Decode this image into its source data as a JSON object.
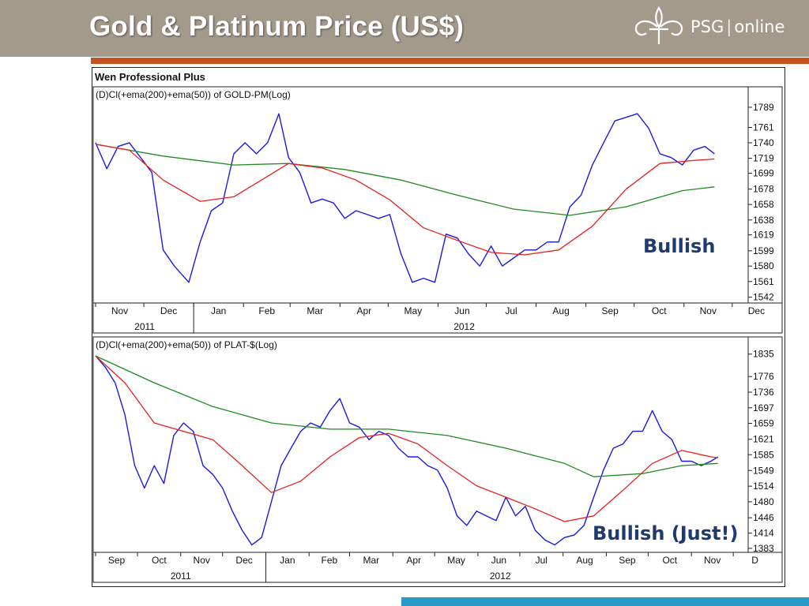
{
  "title": "Gold & Platinum Price (US$)",
  "logo": {
    "brand": "PSG",
    "suffix": "online",
    "icon": "fleur-de-lis-icon"
  },
  "colors": {
    "header": "#a49a8c",
    "accent": "#c4521e",
    "bottom_bar": "#2a9bc8",
    "price": "#1a1ae6",
    "ema50": "#e62020",
    "ema200": "#1f8a1f",
    "annotation": "#1f3a6e"
  },
  "panel_title": "Wen Professional Plus",
  "chart_data": [
    {
      "type": "line",
      "title": "(D)Cl(+ema(200)+ema(50)) of GOLD-PM(Log)",
      "scale": "log",
      "ylim": [
        1535,
        1800
      ],
      "y_ticks": [
        1789,
        1761,
        1740,
        1719,
        1699,
        1678,
        1658,
        1638,
        1619,
        1599,
        1580,
        1561,
        1542
      ],
      "x_range": [
        "2011-11-01",
        "2012-12-06"
      ],
      "months": [
        "Nov",
        "Dec",
        "Jan",
        "Feb",
        "Mar",
        "Apr",
        "May",
        "Jun",
        "Jul",
        "Aug",
        "Sep",
        "Oct",
        "Nov",
        "Dec"
      ],
      "years": [
        "2011",
        "2012"
      ],
      "annotation": "Bullish",
      "series": [
        {
          "name": "GOLD-PM",
          "color": "#1a1ae6",
          "x": [
            "2011-11-01",
            "2011-11-08",
            "2011-11-15",
            "2011-11-22",
            "2011-11-29",
            "2011-12-06",
            "2011-12-13",
            "2011-12-20",
            "2011-12-29",
            "2012-01-05",
            "2012-01-12",
            "2012-01-19",
            "2012-01-26",
            "2012-02-02",
            "2012-02-09",
            "2012-02-16",
            "2012-02-23",
            "2012-02-29",
            "2012-03-07",
            "2012-03-14",
            "2012-03-21",
            "2012-03-28",
            "2012-04-04",
            "2012-04-11",
            "2012-04-18",
            "2012-04-25",
            "2012-05-02",
            "2012-05-09",
            "2012-05-16",
            "2012-05-23",
            "2012-05-30",
            "2012-06-06",
            "2012-06-13",
            "2012-06-20",
            "2012-06-27",
            "2012-07-04",
            "2012-07-11",
            "2012-07-18",
            "2012-07-25",
            "2012-08-01",
            "2012-08-08",
            "2012-08-15",
            "2012-08-22",
            "2012-08-29",
            "2012-09-05",
            "2012-09-12",
            "2012-09-19",
            "2012-09-26",
            "2012-10-03",
            "2012-10-10",
            "2012-10-17",
            "2012-10-24",
            "2012-10-31",
            "2012-11-07",
            "2012-11-14",
            "2012-11-20"
          ],
          "values": [
            1740,
            1705,
            1735,
            1740,
            1720,
            1700,
            1600,
            1580,
            1560,
            1610,
            1650,
            1660,
            1725,
            1740,
            1725,
            1740,
            1780,
            1720,
            1700,
            1660,
            1665,
            1660,
            1640,
            1650,
            1645,
            1640,
            1645,
            1595,
            1560,
            1565,
            1560,
            1620,
            1615,
            1595,
            1580,
            1605,
            1580,
            1590,
            1600,
            1600,
            1610,
            1610,
            1655,
            1670,
            1710,
            1740,
            1770,
            1775,
            1780,
            1760,
            1725,
            1720,
            1710,
            1730,
            1735,
            1725
          ]
        },
        {
          "name": "ema(50)",
          "color": "#e62020",
          "x": [
            "2011-11-01",
            "2011-11-22",
            "2011-12-13",
            "2012-01-05",
            "2012-01-26",
            "2012-02-16",
            "2012-02-29",
            "2012-03-21",
            "2012-04-11",
            "2012-05-02",
            "2012-05-23",
            "2012-06-13",
            "2012-07-04",
            "2012-07-25",
            "2012-08-15",
            "2012-09-05",
            "2012-09-26",
            "2012-10-17",
            "2012-11-07",
            "2012-11-20"
          ],
          "values": [
            1738,
            1730,
            1690,
            1662,
            1668,
            1695,
            1712,
            1706,
            1690,
            1664,
            1628,
            1612,
            1597,
            1594,
            1600,
            1630,
            1678,
            1712,
            1716,
            1718
          ]
        },
        {
          "name": "ema(200)",
          "color": "#1f8a1f",
          "x": [
            "2011-11-01",
            "2011-12-13",
            "2012-01-26",
            "2012-02-29",
            "2012-04-04",
            "2012-05-09",
            "2012-06-13",
            "2012-07-18",
            "2012-08-22",
            "2012-09-26",
            "2012-10-31",
            "2012-11-20"
          ],
          "values": [
            1738,
            1722,
            1710,
            1712,
            1704,
            1690,
            1670,
            1652,
            1644,
            1655,
            1676,
            1681
          ]
        }
      ]
    },
    {
      "type": "line",
      "title": "(D)Cl(+ema(200)+ema(50)) of PLAT-$(Log)",
      "scale": "log",
      "ylim": [
        1375,
        1845
      ],
      "y_ticks": [
        1835,
        1776,
        1736,
        1697,
        1659,
        1621,
        1585,
        1549,
        1514,
        1480,
        1446,
        1414,
        1383
      ],
      "x_range": [
        "2011-09-01",
        "2012-12-06"
      ],
      "months": [
        "Sep",
        "Oct",
        "Nov",
        "Dec",
        "Jan",
        "Feb",
        "Mar",
        "Apr",
        "May",
        "Jun",
        "Jul",
        "Aug",
        "Sep",
        "Oct",
        "Nov",
        "D"
      ],
      "years": [
        "2011",
        "2012"
      ],
      "annotation": "Bullish (Just!)",
      "series": [
        {
          "name": "PLAT-$",
          "color": "#1a1ae6",
          "x": [
            "2011-09-01",
            "2011-09-08",
            "2011-09-15",
            "2011-09-22",
            "2011-09-29",
            "2011-10-06",
            "2011-10-13",
            "2011-10-20",
            "2011-10-27",
            "2011-11-03",
            "2011-11-10",
            "2011-11-17",
            "2011-11-24",
            "2011-12-01",
            "2011-12-08",
            "2011-12-15",
            "2011-12-22",
            "2011-12-29",
            "2012-01-05",
            "2012-01-12",
            "2012-01-19",
            "2012-01-26",
            "2012-02-02",
            "2012-02-09",
            "2012-02-16",
            "2012-02-23",
            "2012-03-01",
            "2012-03-08",
            "2012-03-15",
            "2012-03-22",
            "2012-03-29",
            "2012-04-05",
            "2012-04-12",
            "2012-04-19",
            "2012-04-26",
            "2012-05-03",
            "2012-05-10",
            "2012-05-17",
            "2012-05-24",
            "2012-05-31",
            "2012-06-07",
            "2012-06-14",
            "2012-06-21",
            "2012-06-28",
            "2012-07-05",
            "2012-07-12",
            "2012-07-19",
            "2012-07-26",
            "2012-08-02",
            "2012-08-09",
            "2012-08-16",
            "2012-08-23",
            "2012-08-30",
            "2012-09-06",
            "2012-09-13",
            "2012-09-20",
            "2012-09-27",
            "2012-10-04",
            "2012-10-11",
            "2012-10-18",
            "2012-10-25",
            "2012-11-01",
            "2012-11-08",
            "2012-11-15",
            "2012-11-20"
          ],
          "values": [
            1830,
            1800,
            1760,
            1680,
            1560,
            1510,
            1560,
            1520,
            1630,
            1660,
            1640,
            1560,
            1540,
            1510,
            1460,
            1420,
            1390,
            1405,
            1480,
            1560,
            1600,
            1640,
            1660,
            1650,
            1690,
            1720,
            1660,
            1650,
            1620,
            1640,
            1630,
            1600,
            1580,
            1580,
            1560,
            1550,
            1510,
            1450,
            1430,
            1460,
            1450,
            1440,
            1490,
            1450,
            1470,
            1420,
            1400,
            1390,
            1405,
            1410,
            1430,
            1490,
            1550,
            1600,
            1610,
            1640,
            1640,
            1690,
            1640,
            1620,
            1570,
            1570,
            1560,
            1570,
            1580
          ]
        },
        {
          "name": "ema(50)",
          "color": "#e62020",
          "x": [
            "2011-09-01",
            "2011-09-22",
            "2011-10-13",
            "2011-11-03",
            "2011-11-24",
            "2011-12-15",
            "2012-01-05",
            "2012-01-26",
            "2012-02-16",
            "2012-03-08",
            "2012-03-29",
            "2012-04-19",
            "2012-05-10",
            "2012-05-31",
            "2012-06-21",
            "2012-07-12",
            "2012-08-02",
            "2012-08-23",
            "2012-09-13",
            "2012-10-04",
            "2012-10-25",
            "2012-11-15",
            "2012-11-20"
          ],
          "values": [
            1830,
            1760,
            1660,
            1640,
            1620,
            1560,
            1500,
            1525,
            1580,
            1625,
            1635,
            1610,
            1560,
            1515,
            1490,
            1465,
            1438,
            1450,
            1505,
            1565,
            1595,
            1580,
            1578
          ]
        },
        {
          "name": "ema(200)",
          "color": "#1f8a1f",
          "x": [
            "2011-09-01",
            "2011-10-13",
            "2011-11-24",
            "2012-01-05",
            "2012-02-16",
            "2012-03-29",
            "2012-05-10",
            "2012-06-21",
            "2012-08-02",
            "2012-08-23",
            "2012-09-27",
            "2012-10-25",
            "2012-11-20"
          ],
          "values": [
            1830,
            1760,
            1700,
            1660,
            1645,
            1645,
            1630,
            1600,
            1565,
            1535,
            1542,
            1560,
            1565
          ]
        }
      ]
    }
  ]
}
